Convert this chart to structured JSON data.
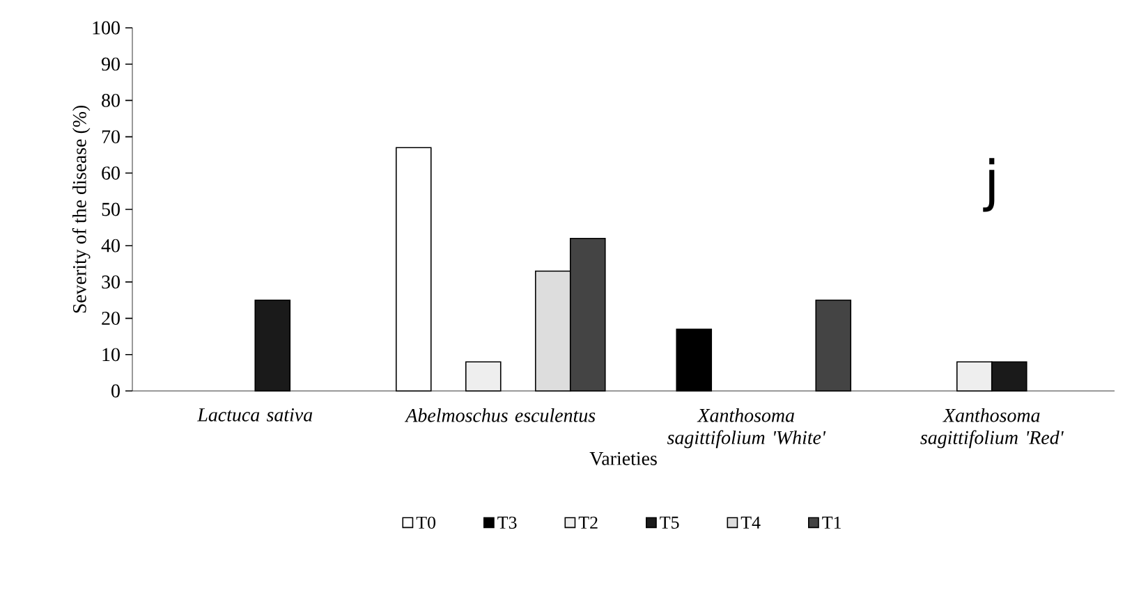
{
  "chart_data": {
    "type": "bar",
    "xlabel": "Varieties",
    "ylabel": "Severity of the disease (%)",
    "categories": [
      "Lactuca sativa",
      "Abelmoschus esculentus",
      "Xanthosoma sagittifolium 'White'",
      "Xanthosoma sagittifolium 'Red'"
    ],
    "series": [
      {
        "name": "T0",
        "color": "#ffffff",
        "values": [
          null,
          67,
          null,
          null
        ]
      },
      {
        "name": "T3",
        "color": "#000000",
        "values": [
          null,
          null,
          17,
          null
        ]
      },
      {
        "name": "T2",
        "color": "#eeeeee",
        "values": [
          null,
          8,
          null,
          8
        ]
      },
      {
        "name": "T5",
        "color": "#1a1a1a",
        "values": [
          25,
          null,
          null,
          8
        ]
      },
      {
        "name": "T4",
        "color": "#dddddd",
        "values": [
          null,
          33,
          null,
          null
        ]
      },
      {
        "name": "T1",
        "color": "#444444",
        "values": [
          null,
          42,
          25,
          null
        ]
      }
    ],
    "ylim": [
      0,
      100
    ],
    "yticks": [
      0,
      10,
      20,
      30,
      40,
      50,
      60,
      70,
      80,
      90,
      100
    ],
    "annotations": [
      "j"
    ],
    "grid": false,
    "legend": "bottom"
  }
}
